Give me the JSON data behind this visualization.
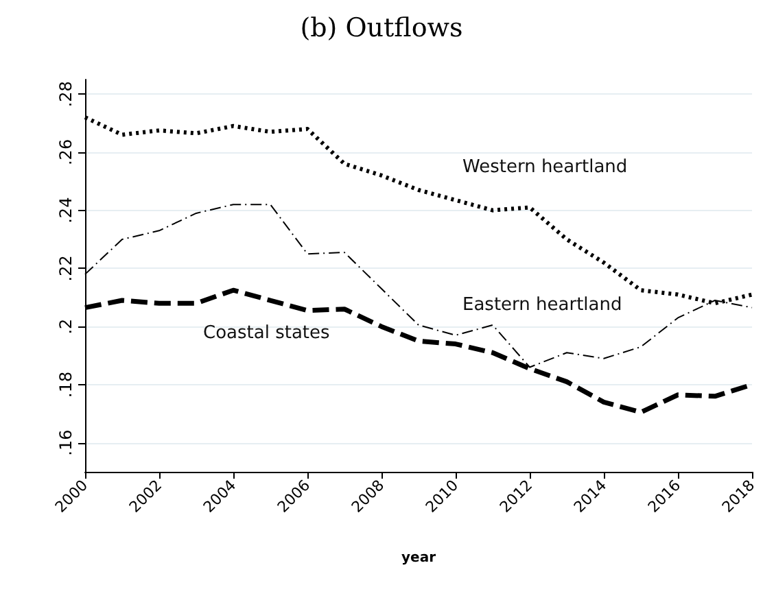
{
  "chart_data": {
    "type": "line",
    "title": "(b) Outflows",
    "xlabel": "year",
    "x": [
      2000,
      2001,
      2002,
      2003,
      2004,
      2005,
      2006,
      2007,
      2008,
      2009,
      2010,
      2011,
      2012,
      2013,
      2014,
      2015,
      2016,
      2017,
      2018
    ],
    "series": [
      {
        "name": "Western heartland",
        "color": "#000000",
        "line_style": "dotted",
        "values": [
          0.272,
          0.266,
          0.2675,
          0.2665,
          0.269,
          0.267,
          0.268,
          0.256,
          0.252,
          0.247,
          0.2435,
          0.24,
          0.241,
          0.23,
          0.222,
          0.2125,
          0.211,
          0.208,
          0.211
        ]
      },
      {
        "name": "Eastern heartland",
        "color": "#000000",
        "line_style": "dashed",
        "values": [
          0.218,
          0.23,
          0.233,
          0.239,
          0.242,
          0.242,
          0.225,
          0.2255,
          0.213,
          0.2005,
          0.197,
          0.2005,
          0.186,
          0.191,
          0.189,
          0.193,
          0.203,
          0.209,
          0.2065
        ]
      },
      {
        "name": "Coastal states",
        "color": "#000000",
        "line_style": "dashed",
        "values": [
          0.2065,
          0.209,
          0.208,
          0.208,
          0.2125,
          0.209,
          0.2055,
          0.206,
          0.2,
          0.195,
          0.194,
          0.191,
          0.1855,
          0.181,
          0.174,
          0.1705,
          0.1765,
          0.176,
          0.18
        ]
      }
    ],
    "xlim": [
      2000,
      2018
    ],
    "xticks": [
      2000,
      2002,
      2004,
      2006,
      2008,
      2010,
      2012,
      2014,
      2016,
      2018
    ],
    "ylim": [
      0.15,
      0.285
    ],
    "yticks": [
      {
        "value": 0.16,
        "label": ".16"
      },
      {
        "value": 0.18,
        "label": ".18"
      },
      {
        "value": 0.2,
        "label": ".2"
      },
      {
        "value": 0.22,
        "label": ".22"
      },
      {
        "value": 0.24,
        "label": ".24"
      },
      {
        "value": 0.26,
        "label": ".26"
      },
      {
        "value": 0.28,
        "label": ".28"
      }
    ],
    "grid": "y",
    "marker": "none"
  }
}
